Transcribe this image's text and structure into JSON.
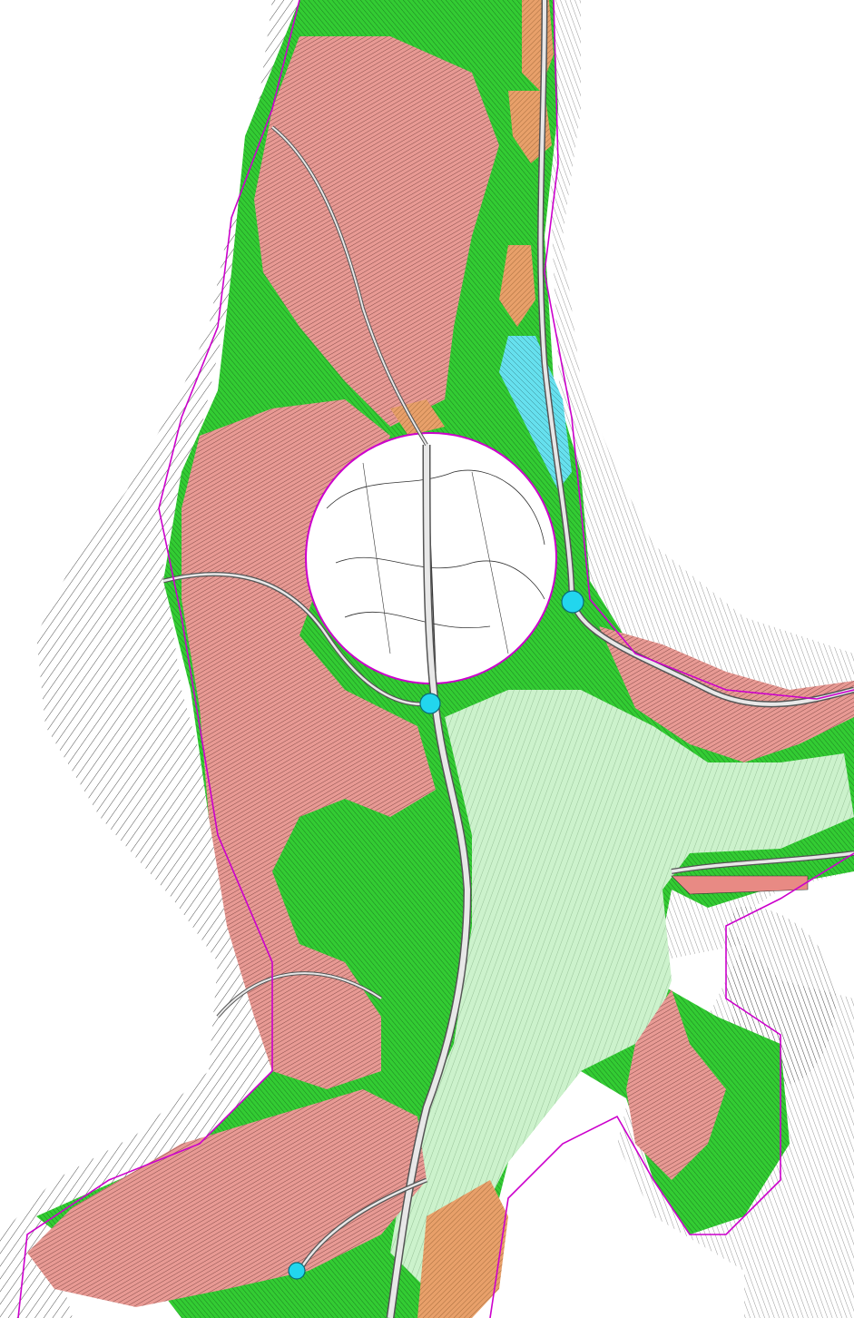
{
  "map": {
    "colors": {
      "background": "#ffffff",
      "contour": "#1a1a1a",
      "boundary": "#cc00cc",
      "green_forest": "#33cc33",
      "green_dark": "#1f8f2a",
      "light_green": "#ccf2cc",
      "pink_zone": "#e89a94",
      "pink_dark": "#a86a64",
      "orange_zone": "#e8a06a",
      "cyan_zone": "#66e0ee",
      "road_fill": "#e8e8e8",
      "road_edge": "#555555",
      "marker": "#22d6ee"
    },
    "markers": [
      {
        "name": "survey-point-east"
      },
      {
        "name": "survey-point-center"
      },
      {
        "name": "survey-point-south"
      }
    ]
  }
}
